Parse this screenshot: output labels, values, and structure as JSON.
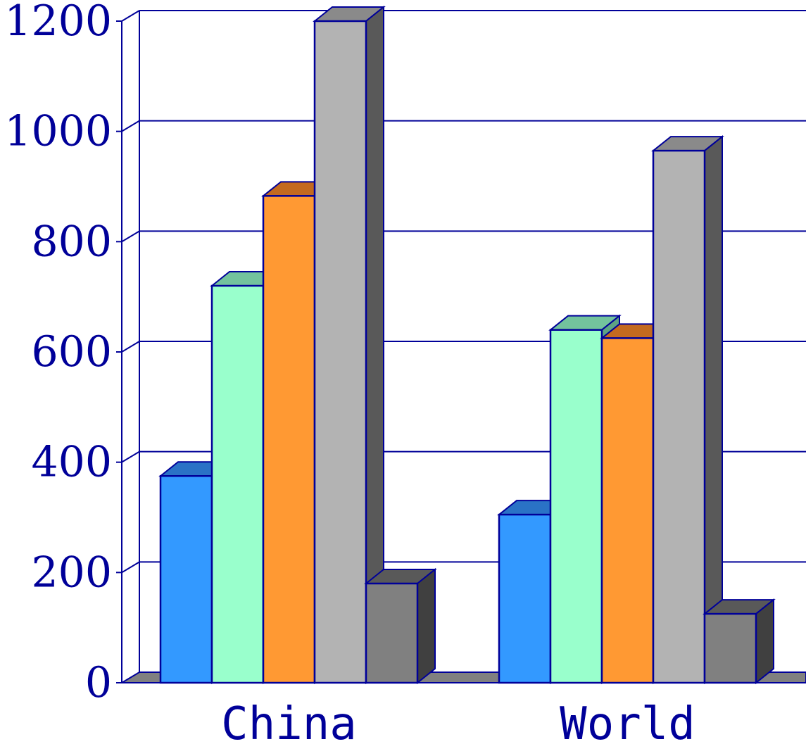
{
  "chart_data": {
    "type": "bar",
    "style": "3d-clustered",
    "categories": [
      "China",
      "World"
    ],
    "series": [
      {
        "values": [
          375,
          305
        ],
        "color": "#3399ff",
        "top_color": "#2a72c6",
        "side_color": "#1f5aa6"
      },
      {
        "values": [
          720,
          640
        ],
        "color": "#99ffcc",
        "top_color": "#73c39d",
        "side_color": "#5ea383"
      },
      {
        "values": [
          883,
          625
        ],
        "color": "#ff9933",
        "top_color": "#c46a1f",
        "side_color": "#a85a18"
      },
      {
        "values": [
          1200,
          965
        ],
        "color": "#b3b3b3",
        "top_color": "#8a8a8a",
        "side_color": "#595959"
      },
      {
        "values": [
          180,
          125
        ],
        "color": "#808080",
        "top_color": "#595959",
        "side_color": "#404040"
      }
    ],
    "ylim": [
      0,
      1200
    ],
    "yticks": [
      "0",
      "200",
      "400",
      "600",
      "800",
      "1000",
      "1200"
    ],
    "grid": true,
    "legend": "none",
    "colors": {
      "axis": "#000099",
      "text": "#000099",
      "floor": "#808080"
    }
  }
}
